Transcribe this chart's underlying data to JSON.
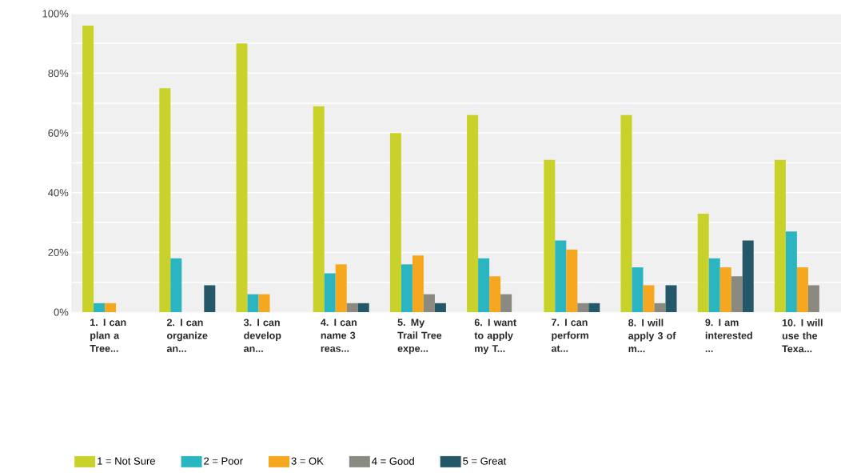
{
  "chart_data": {
    "type": "bar",
    "categories": [
      "1. I can plan a Tree...",
      "2. I can organize an...",
      "3. I can develop an...",
      "4. I can name 3 reas...",
      "5. My Trail Tree expe...",
      "6. I want to apply my T...",
      "7. I can perform at...",
      "8. I will apply 3 of m...",
      "9. I am interested ...",
      "10. I will use the Texa..."
    ],
    "series": [
      {
        "name": "1 = Not Sure",
        "color": "#c8d22a",
        "values": [
          96,
          75,
          90,
          69,
          60,
          66,
          51,
          66,
          33,
          51
        ]
      },
      {
        "name": "2 = Poor",
        "color": "#2bb5c0",
        "values": [
          3,
          18,
          6,
          13,
          16,
          18,
          24,
          15,
          18,
          27
        ]
      },
      {
        "name": "3 = OK",
        "color": "#f5a81f",
        "values": [
          3,
          0,
          6,
          16,
          19,
          12,
          21,
          9,
          15,
          15
        ]
      },
      {
        "name": "4 = Good",
        "color": "#8a8a80",
        "values": [
          0,
          0,
          0,
          3,
          6,
          6,
          3,
          3,
          12,
          9
        ]
      },
      {
        "name": "5 = Great",
        "color": "#245868",
        "values": [
          0,
          9,
          0,
          3,
          3,
          0,
          3,
          9,
          24,
          0
        ]
      }
    ],
    "ylim": [
      0,
      100
    ],
    "yticks": [
      {
        "value": 0,
        "label": "0%"
      },
      {
        "value": 20,
        "label": "20%"
      },
      {
        "value": 40,
        "label": "40%"
      },
      {
        "value": 60,
        "label": "60%"
      },
      {
        "value": 80,
        "label": "80%"
      },
      {
        "value": 100,
        "label": "100%"
      }
    ],
    "grid": "y",
    "legend": "bottom"
  }
}
